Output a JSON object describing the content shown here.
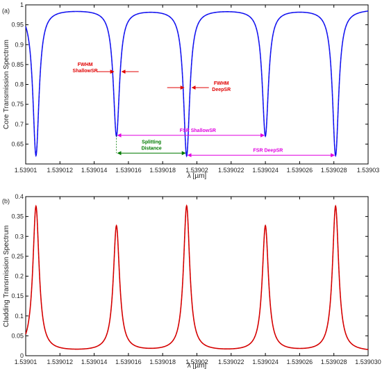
{
  "chart_data": [
    {
      "panel": "(a)",
      "type": "line",
      "xlabel": "λ [µm]",
      "ylabel": "Core Transmission Spectrum",
      "xlim": [
        1.53901,
        1.53903
      ],
      "ylim": [
        0.6,
        1.0
      ],
      "xticks": [
        1.53901,
        1.539012,
        1.539014,
        1.539016,
        1.539018,
        1.53902,
        1.539022,
        1.539024,
        1.539026,
        1.539028,
        1.53903
      ],
      "xtick_labels": [
        "1.53901",
        "1.539012",
        "1.539014",
        "1.539016",
        "1.539018",
        "1.53902",
        "1.539022",
        "1.539024",
        "1.539026",
        "1.539028",
        "1.53903"
      ],
      "yticks": [
        0.65,
        0.7,
        0.75,
        0.8,
        0.85,
        0.9,
        0.95,
        1.0
      ],
      "ytick_labels": [
        "0.65",
        "0.7",
        "0.75",
        "0.8",
        "0.85",
        "0.9",
        "0.95",
        "1"
      ],
      "line_color": "#1a1aff",
      "line_style": "solid with dashed overlay",
      "baseline": 0.99,
      "resonances": [
        {
          "x": 1.5390106,
          "min": 0.622,
          "kind": "DeepSR"
        },
        {
          "x": 1.5390153,
          "min": 0.672,
          "kind": "ShallowSR"
        },
        {
          "x": 1.5390194,
          "min": 0.622,
          "kind": "DeepSR"
        },
        {
          "x": 1.539024,
          "min": 0.672,
          "kind": "ShallowSR"
        },
        {
          "x": 1.5390281,
          "min": 0.622,
          "kind": "DeepSR"
        }
      ],
      "annotations": [
        {
          "lines": [
            "FWHM",
            "ShallowSR"
          ],
          "color": "#e00000",
          "kind": "fwhm",
          "x": 1.5390153,
          "y": 0.832
        },
        {
          "lines": [
            "FWHM",
            "DeepSR"
          ],
          "color": "#e00000",
          "kind": "fwhm",
          "x": 1.5390194,
          "y": 0.792
        },
        {
          "lines": [
            "FSR ShallowSR"
          ],
          "color": "#e000e0",
          "kind": "span",
          "x1": 1.5390153,
          "x2": 1.539024,
          "y": 0.672
        },
        {
          "lines": [
            "FSR DeepSR"
          ],
          "color": "#e000e0",
          "kind": "span",
          "x1": 1.5390194,
          "x2": 1.5390281,
          "y": 0.622
        },
        {
          "lines": [
            "Splitting",
            "Distance"
          ],
          "color": "#007a00",
          "kind": "span",
          "x1": 1.5390153,
          "x2": 1.5390194,
          "y": 0.622
        }
      ]
    },
    {
      "panel": "(b)",
      "type": "line",
      "xlabel": "λ [µm]",
      "ylabel": "Cladding Transmission Spectrum",
      "xlim": [
        1.53901,
        1.53903
      ],
      "ylim": [
        0.0,
        0.4
      ],
      "xticks": [
        1.53901,
        1.539012,
        1.539014,
        1.539016,
        1.539018,
        1.53902,
        1.539022,
        1.539024,
        1.539026,
        1.539028,
        1.53903
      ],
      "xtick_labels": [
        "1.53901",
        "1.539012",
        "1.539014",
        "1.539016",
        "1.539018",
        "1.53902",
        "1.539022",
        "1.539024",
        "1.539026",
        "1.539028",
        "1.539030"
      ],
      "yticks": [
        0,
        0.05,
        0.1,
        0.15,
        0.2,
        0.25,
        0.3,
        0.35,
        0.4
      ],
      "ytick_labels": [
        "0",
        "0.05",
        "0.1",
        "0.15",
        "0.2",
        "0.25",
        "0.3",
        "0.35",
        "0.4"
      ],
      "line_color": "#e00000",
      "line_style": "solid with dashed overlay",
      "baseline": 0.01,
      "resonances": [
        {
          "x": 1.5390106,
          "max": 0.375
        },
        {
          "x": 1.5390153,
          "max": 0.325
        },
        {
          "x": 1.5390194,
          "max": 0.375
        },
        {
          "x": 1.539024,
          "max": 0.325
        },
        {
          "x": 1.5390281,
          "max": 0.375
        }
      ]
    }
  ]
}
